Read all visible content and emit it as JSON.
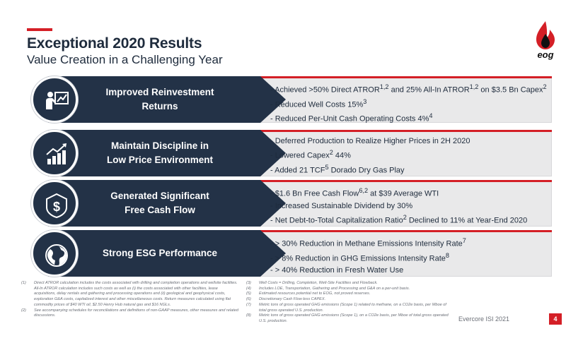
{
  "header": {
    "title": "Exceptional 2020 Results",
    "subtitle": "Value Creation in a Challenging Year",
    "logo_text": "eog"
  },
  "colors": {
    "accent": "#d41f26",
    "navy": "#233247",
    "panel": "#e9e9ea"
  },
  "rows": [
    {
      "icon": "presentation-chart-icon",
      "label_line1": "Improved Reinvestment",
      "label_line2": "Returns",
      "bullets": [
        {
          "pre": "- Achieved >50% Direct ATROR",
          "sup1": "1,2",
          "mid": " and 25% All-In ATROR",
          "sup2": "1,2",
          "post": " on $3.5 Bn Capex",
          "sup3": "2"
        },
        {
          "pre": "- Reduced Well Costs 15%",
          "sup1": "3",
          "mid": "",
          "sup2": "",
          "post": "",
          "sup3": ""
        },
        {
          "pre": "- Reduced Per-Unit Cash Operating Costs 4%",
          "sup1": "4",
          "mid": "",
          "sup2": "",
          "post": "",
          "sup3": ""
        }
      ]
    },
    {
      "icon": "bar-chart-arrow-icon",
      "label_line1": "Maintain Discipline in",
      "label_line2": "Low Price Environment",
      "bullets": [
        {
          "pre": "- Deferred Production to Realize Higher Prices in 2H 2020",
          "sup1": "",
          "mid": "",
          "sup2": "",
          "post": "",
          "sup3": ""
        },
        {
          "pre": "- Lowered Capex",
          "sup1": "2",
          "mid": " 44%",
          "sup2": "",
          "post": "",
          "sup3": ""
        },
        {
          "pre": "- Added 21 TCF",
          "sup1": "5",
          "mid": " Dorado Dry Gas Play",
          "sup2": "",
          "post": "",
          "sup3": ""
        }
      ]
    },
    {
      "icon": "dollar-shield-icon",
      "label_line1": "Generated Significant",
      "label_line2": "Free Cash Flow",
      "bullets": [
        {
          "pre": "- $1.6 Bn Free Cash Flow",
          "sup1": "6,2",
          "mid": " at $39 Average WTI",
          "sup2": "",
          "post": "",
          "sup3": ""
        },
        {
          "pre": "- Increased Sustainable Dividend by 30%",
          "sup1": "",
          "mid": "",
          "sup2": "",
          "post": "",
          "sup3": ""
        },
        {
          "pre": "- Net Debt-to-Total Capitalization Ratio",
          "sup1": "2",
          "mid": " Declined to 11% at Year-End 2020",
          "sup2": "",
          "post": "",
          "sup3": ""
        }
      ]
    },
    {
      "icon": "globe-icon",
      "label_line1": "Strong ESG Performance",
      "label_line2": "",
      "bullets": [
        {
          "pre": "- > 30% Reduction in Methane Emissions Intensity Rate",
          "sup1": "7",
          "mid": "",
          "sup2": "",
          "post": "",
          "sup3": ""
        },
        {
          "pre": "- > 8% Reduction in GHG Emissions Intensity Rate",
          "sup1": "8",
          "mid": "",
          "sup2": "",
          "post": "",
          "sup3": ""
        },
        {
          "pre": "- > 40% Reduction in Fresh Water Use",
          "sup1": "",
          "mid": "",
          "sup2": "",
          "post": "",
          "sup3": ""
        }
      ]
    }
  ],
  "footnotes_left": [
    {
      "num": "(1)",
      "text": "Direct ATROR calculation includes the costs associated with drilling and completion operations and wellsite facilities. All-In ATROR calculation includes such costs as well as (i) the costs associated with other facilities, lease acquisitions, delay rentals and gathering and processing operations and (ii) geological and geophysical costs, exploration G&A costs, capitalized interest and other miscellaneous costs. Return measures calculated using flat commodity prices of $40 WTI oil, $2.50 Henry Hub natural gas and $16 NGLs."
    },
    {
      "num": "(2)",
      "text": "See accompanying schedules for reconciliations and definitions of non-GAAP measures, other measures and related discussions."
    }
  ],
  "footnotes_right": [
    {
      "num": "(3)",
      "text": "Well Costs = Drilling, Completion, Well-Site Facilities and Flowback."
    },
    {
      "num": "(4)",
      "text": "Includes LOE, Transportation, Gathering and Processing and G&A on a per-unit basis."
    },
    {
      "num": "(5)",
      "text": "Estimated resources potential net to EOG, not proved reserves."
    },
    {
      "num": "(6)",
      "text": "Discretionary Cash Flow less CAPEX."
    },
    {
      "num": "(7)",
      "text": "Metric tons of gross operated GHG emissions (Scope 1) related to methane, on a CO2e basis, per Mboe of total gross operated U.S. production."
    },
    {
      "num": "(8)",
      "text": "Metric tons of gross operated GHG emissions (Scope 1), on a CO2e basis, per Mboe of total gross operated U.S. production."
    }
  ],
  "footer": {
    "name": "Evercore ISI 2021",
    "page": "4"
  }
}
